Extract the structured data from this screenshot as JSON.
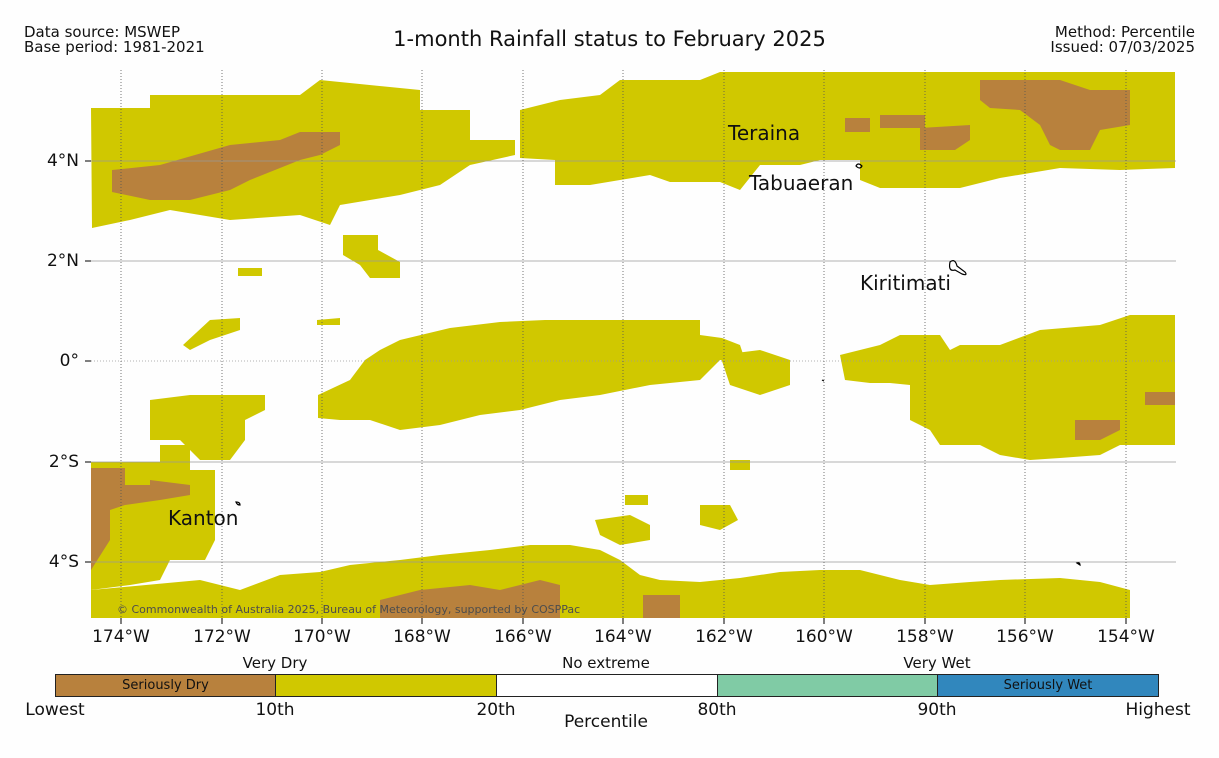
{
  "header": {
    "source": "Data source: MSWEP",
    "base_period": "Base period: 1981-2021",
    "title": "1-month Rainfall status to February 2025",
    "method": "Method: Percentile",
    "issued": "Issued: 07/03/2025"
  },
  "map": {
    "region_extent_lon": [
      -174.6,
      -152.8
    ],
    "region_extent_lat": [
      -5.1,
      5.8
    ],
    "lat_ticks": [
      "4°N",
      "2°N",
      "0°",
      "2°S",
      "4°S"
    ],
    "lon_ticks": [
      "174°W",
      "172°W",
      "170°W",
      "168°W",
      "166°W",
      "164°W",
      "162°W",
      "160°W",
      "158°W",
      "156°W",
      "154°W"
    ],
    "places": [
      "Teraina",
      "Tabuaeran",
      "Kiritimati",
      "Kanton"
    ],
    "copyright": "© Commonwealth of Australia 2025, Bureau of Meteorology, supported by COSPPac"
  },
  "legend": {
    "categories": [
      "Very Dry",
      "No extreme",
      "Very Wet"
    ],
    "segments": [
      {
        "label": "Seriously Dry",
        "color": "#b8813d"
      },
      {
        "label": "",
        "color": "#d0c800"
      },
      {
        "label": "",
        "color": "#ffffff"
      },
      {
        "label": "",
        "color": "#80cba5"
      },
      {
        "label": "Seriously Wet",
        "color": "#3187bd"
      }
    ],
    "ticks": [
      "Lowest",
      "10th",
      "20th",
      "80th",
      "90th",
      "Highest"
    ],
    "axis_label": "Percentile"
  },
  "colors": {
    "very_dry": "#d0c800",
    "seriously_dry": "#b8813d",
    "grid": "#999999"
  }
}
